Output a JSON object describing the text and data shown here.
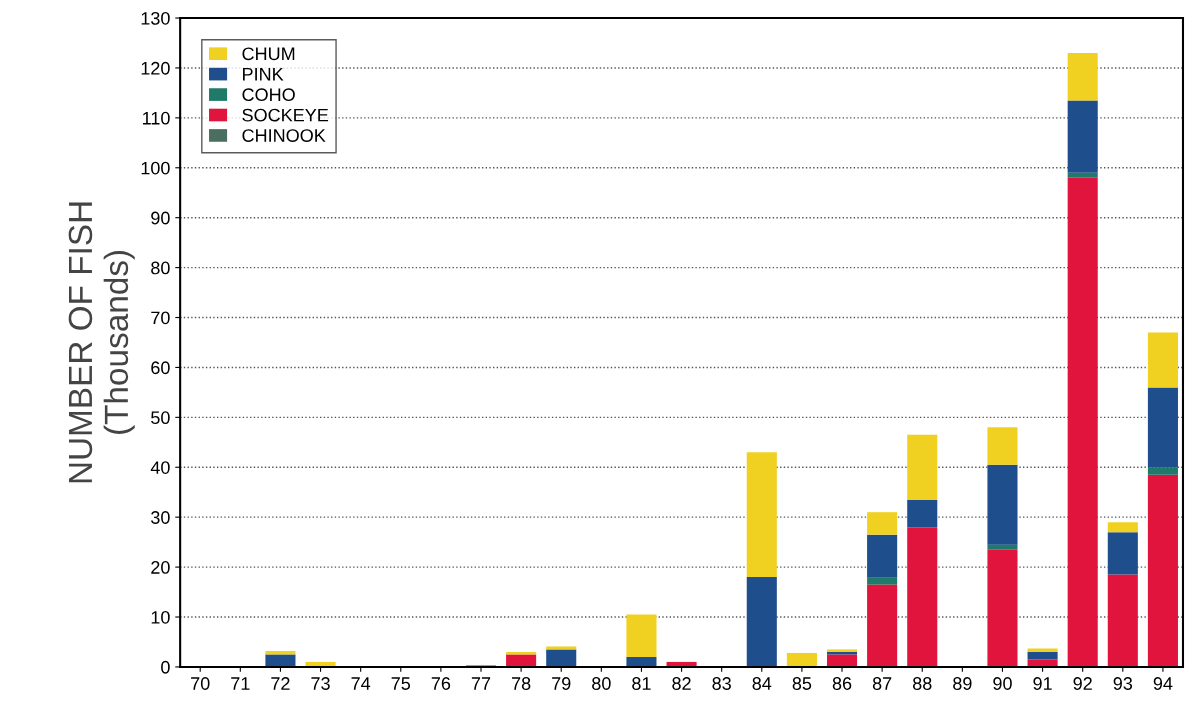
{
  "chart_data": {
    "type": "bar",
    "stacked": true,
    "ylabel": "NUMBER OF FISH\n(Thousands)",
    "categories": [
      "70",
      "71",
      "72",
      "73",
      "74",
      "75",
      "76",
      "77",
      "78",
      "79",
      "80",
      "81",
      "82",
      "83",
      "84",
      "85",
      "86",
      "87",
      "88",
      "89",
      "90",
      "91",
      "92",
      "93",
      "94"
    ],
    "series": [
      {
        "name": "CHINOOK",
        "color": "#4a6e60",
        "values": [
          0,
          0,
          0,
          0,
          0,
          0,
          0,
          0,
          0,
          0,
          0,
          0,
          0,
          0,
          0,
          0,
          0,
          0,
          0,
          0,
          0,
          0,
          0,
          0,
          0
        ]
      },
      {
        "name": "SOCKEYE",
        "color": "#e0143c",
        "values": [
          0,
          0,
          0,
          0,
          0,
          0,
          0,
          0.3,
          2.5,
          0,
          0,
          0,
          1,
          0,
          0,
          0,
          2.5,
          16.5,
          28,
          0,
          23.5,
          1.5,
          98,
          18.5,
          38.5
        ]
      },
      {
        "name": "COHO",
        "color": "#1f7a6a",
        "values": [
          0,
          0,
          0,
          0,
          0,
          0,
          0,
          0,
          0,
          0,
          0,
          0,
          0,
          0,
          0,
          0,
          0,
          1.5,
          0,
          0,
          1,
          0,
          1,
          0,
          1.5
        ]
      },
      {
        "name": "PINK",
        "color": "#1f4e8c",
        "values": [
          0,
          0,
          2.5,
          0,
          0,
          0,
          0,
          0,
          0,
          3.5,
          0,
          2,
          0,
          0,
          18,
          0,
          0.5,
          8.5,
          5.5,
          0,
          16,
          1.5,
          14.5,
          8.5,
          16
        ]
      },
      {
        "name": "CHUM",
        "color": "#f0d020",
        "values": [
          0,
          0,
          0.7,
          1,
          0,
          0,
          0,
          0,
          0.5,
          0.6,
          0,
          8.5,
          0,
          0,
          25,
          2.8,
          0.5,
          4.5,
          13,
          0,
          7.5,
          0.7,
          9.5,
          2,
          11
        ]
      }
    ],
    "ylim": [
      0,
      130
    ],
    "yticks": [
      0,
      10,
      20,
      30,
      40,
      50,
      60,
      70,
      80,
      90,
      100,
      110,
      120,
      130
    ],
    "grid": "y",
    "legend": "top left"
  }
}
